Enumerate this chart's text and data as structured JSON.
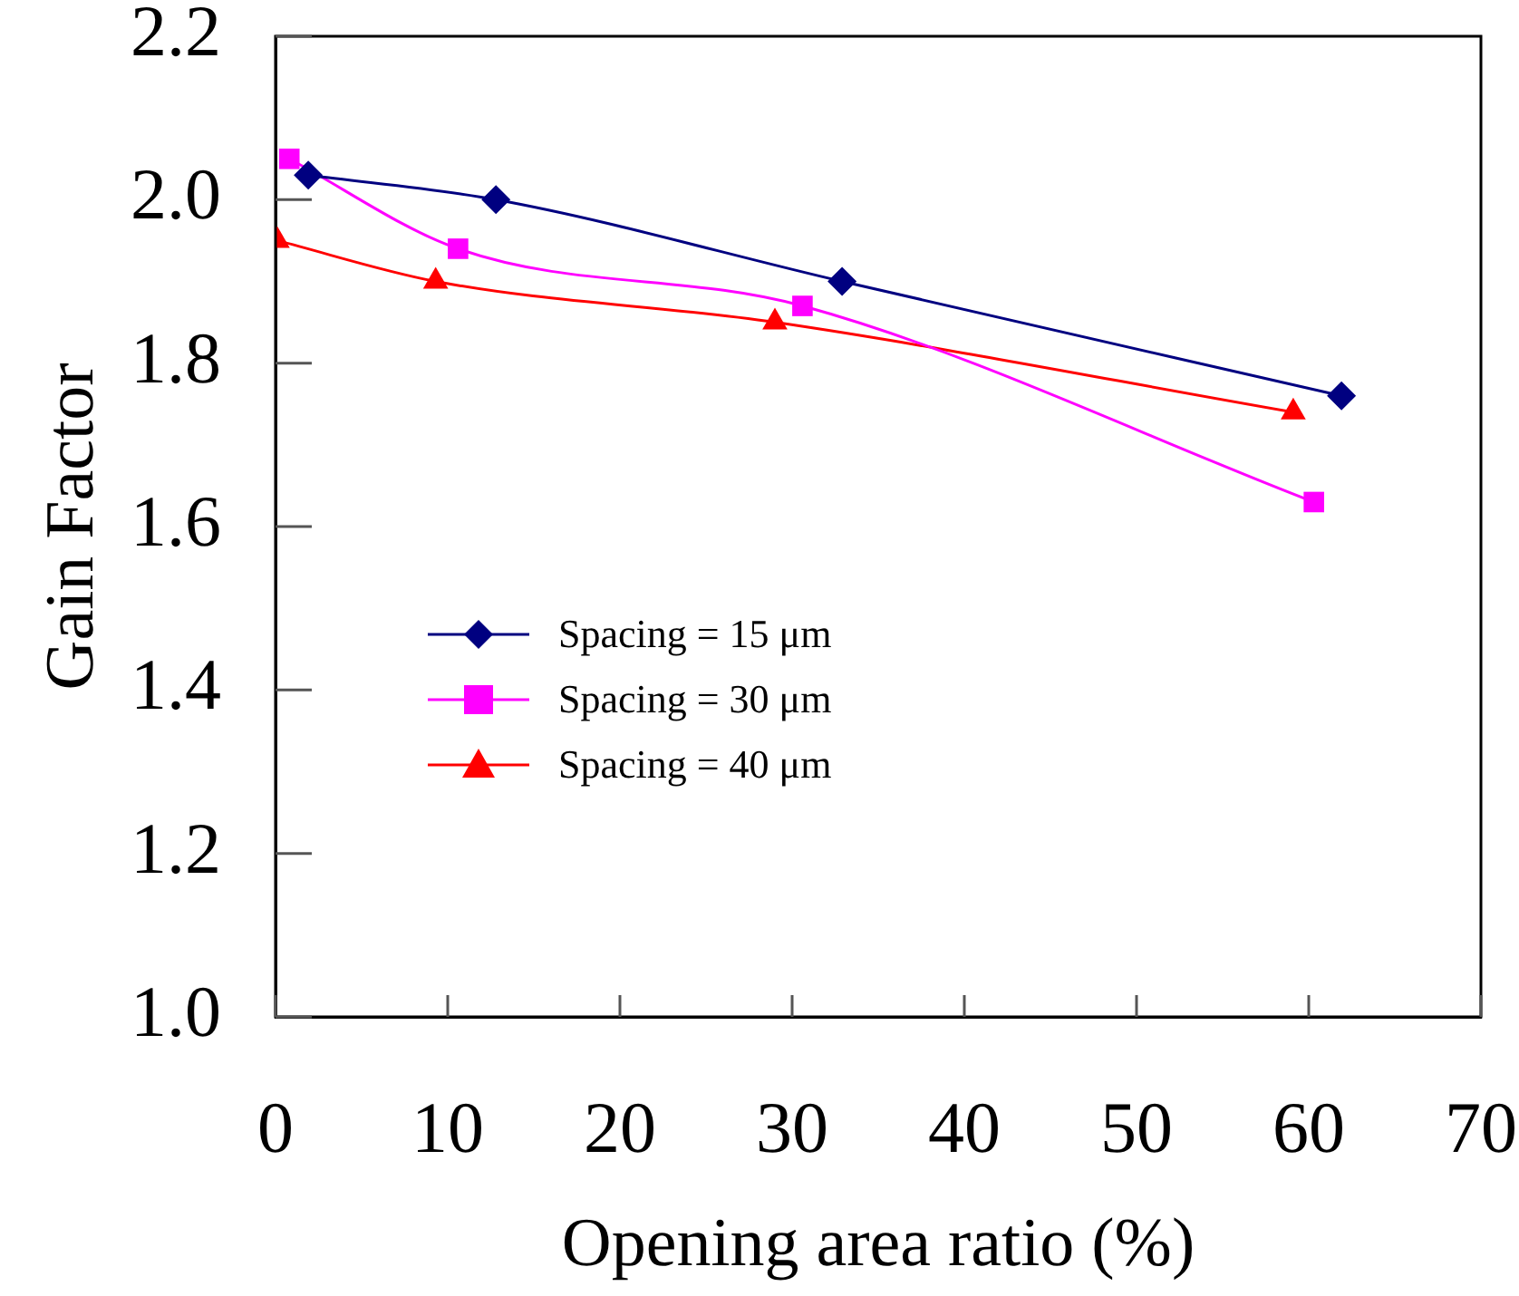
{
  "chart_data": {
    "type": "line",
    "xlabel": "Opening area ratio (%)",
    "ylabel": "Gain Factor",
    "xlim": [
      0,
      70
    ],
    "xticks": [
      0,
      10,
      20,
      30,
      40,
      50,
      60,
      70
    ],
    "ylim": [
      1.0,
      2.2
    ],
    "yticks": [
      {
        "value": 1.0,
        "label": "1.0"
      },
      {
        "value": 1.2,
        "label": "1.2"
      },
      {
        "value": 1.4,
        "label": "1.4"
      },
      {
        "value": 1.6,
        "label": "1.6"
      },
      {
        "value": 1.8,
        "label": "1.8"
      },
      {
        "value": 2.0,
        "label": "2.0"
      },
      {
        "value": 2.2,
        "label": "2.2"
      }
    ],
    "grid": false,
    "legend": "left",
    "series": [
      {
        "name": "Spacing = 15 μm",
        "color": "#000080",
        "marker": "diamond",
        "x": [
          1.9,
          12.8,
          32.9,
          61.9
        ],
        "values": [
          2.03,
          2.0,
          1.9,
          1.76
        ]
      },
      {
        "name": "Spacing = 30 μm",
        "color": "#ff00ff",
        "marker": "square",
        "x": [
          0.8,
          10.6,
          30.6,
          60.3
        ],
        "values": [
          2.05,
          1.94,
          1.87,
          1.63
        ]
      },
      {
        "name": "Spacing = 40 μm",
        "color": "#ff0000",
        "marker": "triangle",
        "x": [
          0.1,
          9.3,
          29.0,
          59.1
        ],
        "values": [
          1.95,
          1.9,
          1.85,
          1.74
        ]
      }
    ]
  }
}
